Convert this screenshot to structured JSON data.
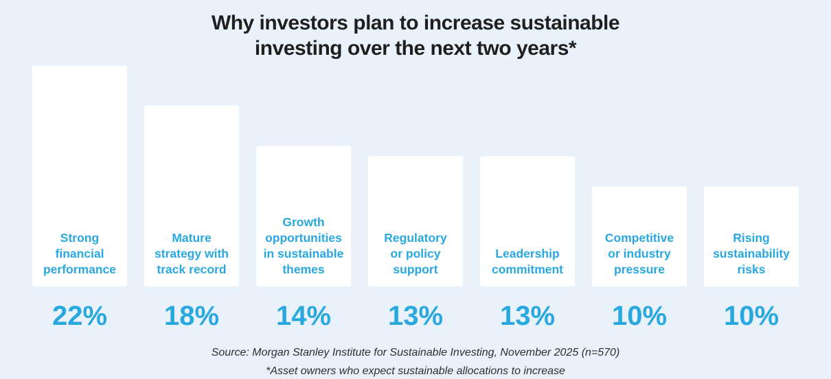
{
  "page": {
    "background_color": "#e9f2fa",
    "title_line1": "Why investors plan to increase sustainable",
    "title_line2": "investing over the next two years*",
    "source_line1": "Source: Morgan Stanley Institute for Sustainable Investing, November 2025 (n=570)",
    "source_line2": "*Asset owners who expect sustainable allocations to increase"
  },
  "chart_data": {
    "type": "bar",
    "orientation": "vertical",
    "title": "Why investors plan to increase sustainable investing over the next two years*",
    "categories": [
      "Strong financial performance",
      "Mature strategy with track record",
      "Growth opportunities in sustainable themes",
      "Regulatory or policy support",
      "Leadership commitment",
      "Competitive or industry pressure",
      "Rising sustainability risks"
    ],
    "category_label_lines": [
      [
        "Strong",
        "financial",
        "performance"
      ],
      [
        "Mature",
        "strategy with",
        "track record"
      ],
      [
        "Growth",
        "opportunities",
        "in sustainable",
        "themes"
      ],
      [
        "Regulatory",
        "or policy",
        "support"
      ],
      [
        "Leadership",
        "commitment"
      ],
      [
        "Competitive",
        "or industry",
        "pressure"
      ],
      [
        "Rising",
        "sustainability",
        "risks"
      ]
    ],
    "values": [
      22,
      18,
      14,
      13,
      13,
      10,
      10
    ],
    "value_labels": [
      "22%",
      "18%",
      "14%",
      "13%",
      "13%",
      "10%",
      "10%"
    ],
    "unit": "percent",
    "ylim": [
      0,
      22
    ],
    "grid": false,
    "legend": "none",
    "axes_shown": false,
    "bar_color": "#ffffff",
    "label_color": "#29a8e0",
    "background_color": "#e9f2fa",
    "source": "Source: Morgan Stanley Institute for Sustainable Investing, November 2025 (n=570)",
    "footnote": "*Asset owners who expect sustainable allocations to increase"
  }
}
